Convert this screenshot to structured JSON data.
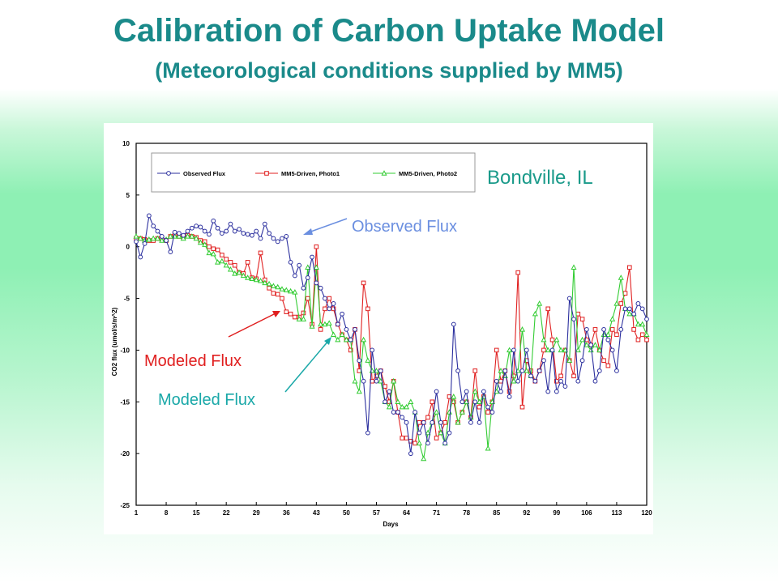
{
  "slide": {
    "title": "Calibration of Carbon Uptake Model",
    "subtitle": "(Meteorological conditions supplied by MM5)"
  },
  "colors": {
    "observed": "#2b2f9e",
    "photo1": "#e02020",
    "photo2": "#33cc33",
    "title": "#1a8a8a",
    "annot_observed": "#6b8fe0",
    "annot_modeled_red": "#e02020",
    "annot_modeled_teal": "#1aa8a8"
  },
  "annotations": {
    "site": "Bondville,  IL",
    "observed": "Observed Flux",
    "modeled_red": "Modeled Flux",
    "modeled_teal": "Modeled Flux"
  },
  "chart_data": {
    "type": "line",
    "xlabel": "Days",
    "ylabel": "CO2 flux (umol/s/m^2)",
    "xlim": [
      1,
      120
    ],
    "ylim": [
      -25,
      10
    ],
    "xticks": [
      1,
      8,
      15,
      22,
      29,
      36,
      43,
      50,
      57,
      64,
      71,
      78,
      85,
      92,
      99,
      106,
      113,
      120
    ],
    "yticks": [
      10,
      5,
      0,
      -5,
      -10,
      -15,
      -20,
      -25
    ],
    "grid": false,
    "legend": "top-left",
    "series": [
      {
        "name": "Observed Flux",
        "x": [
          1,
          2,
          3,
          4,
          5,
          6,
          7,
          8,
          9,
          10,
          11,
          12,
          13,
          14,
          15,
          16,
          17,
          18,
          19,
          20,
          21,
          22,
          23,
          24,
          25,
          26,
          27,
          28,
          29,
          30,
          31,
          32,
          33,
          34,
          35,
          36,
          37,
          38,
          39,
          40,
          41,
          42,
          43,
          44,
          45,
          46,
          47,
          48,
          49,
          50,
          51,
          52,
          53,
          54,
          55,
          56,
          57,
          58,
          59,
          60,
          61,
          62,
          63,
          64,
          65,
          66,
          67,
          68,
          69,
          70,
          71,
          72,
          73,
          74,
          75,
          76,
          77,
          78,
          79,
          80,
          81,
          82,
          83,
          84,
          85,
          86,
          87,
          88,
          89,
          90,
          91,
          92,
          93,
          94,
          95,
          96,
          97,
          98,
          99,
          100,
          101,
          102,
          103,
          104,
          105,
          106,
          107,
          108,
          109,
          110,
          111,
          112,
          113,
          114,
          115,
          116,
          117,
          118,
          119,
          120
        ],
        "y": [
          0.5,
          -1,
          0.3,
          3,
          2,
          1.5,
          1,
          0.6,
          -0.5,
          1.4,
          1.3,
          1.1,
          1.5,
          1.8,
          2,
          1.9,
          1.5,
          1.2,
          2.5,
          1.8,
          1.3,
          1.5,
          2.2,
          1.5,
          1.7,
          1.3,
          1.2,
          1.1,
          1.5,
          0.8,
          2.2,
          1.3,
          0.8,
          0.5,
          0.8,
          1,
          -1.5,
          -2.8,
          -1.8,
          -4,
          -3,
          -1,
          -3.5,
          -4,
          -5,
          -6,
          -5.5,
          -7.5,
          -6.5,
          -8,
          -9,
          -8,
          -11,
          -13,
          -18,
          -10,
          -13,
          -12,
          -15,
          -14,
          -16,
          -16,
          -16.5,
          -17,
          -20,
          -16,
          -18,
          -17,
          -19,
          -17,
          -14,
          -17,
          -19,
          -18,
          -7.5,
          -12,
          -15,
          -14,
          -17,
          -15,
          -17,
          -14,
          -15.5,
          -16,
          -13,
          -14,
          -12,
          -14.5,
          -10,
          -13,
          -12,
          -10,
          -12.5,
          -13,
          -12,
          -11,
          -14,
          -10,
          -14,
          -13,
          -13.5,
          -5,
          -7,
          -13,
          -11,
          -8,
          -9.5,
          -13,
          -12,
          -8,
          -9,
          -10,
          -12,
          -8,
          -6,
          -6,
          -6.5,
          -5.5,
          -6,
          -7
        ]
      },
      {
        "name": "MM5-Driven, Photo1",
        "x": [
          1,
          2,
          3,
          4,
          5,
          6,
          7,
          8,
          9,
          10,
          11,
          12,
          13,
          14,
          15,
          16,
          17,
          18,
          19,
          20,
          21,
          22,
          23,
          24,
          25,
          26,
          27,
          28,
          29,
          30,
          31,
          32,
          33,
          34,
          35,
          36,
          37,
          38,
          39,
          40,
          41,
          42,
          43,
          44,
          45,
          46,
          47,
          48,
          49,
          50,
          51,
          52,
          53,
          54,
          55,
          56,
          57,
          58,
          59,
          60,
          61,
          62,
          63,
          64,
          65,
          66,
          67,
          68,
          69,
          70,
          71,
          72,
          73,
          74,
          75,
          76,
          77,
          78,
          79,
          80,
          81,
          82,
          83,
          84,
          85,
          86,
          87,
          88,
          89,
          90,
          91,
          92,
          93,
          94,
          95,
          96,
          97,
          98,
          99,
          100,
          101,
          102,
          103,
          104,
          105,
          106,
          107,
          108,
          109,
          110,
          111,
          112,
          113,
          114,
          115,
          116,
          117,
          118,
          119,
          120
        ],
        "y": [
          0.8,
          0.8,
          0.7,
          0.6,
          0.6,
          0.8,
          0.7,
          0.6,
          1,
          1.2,
          1,
          0.9,
          1.1,
          1,
          0.9,
          0.6,
          0.5,
          0,
          -0.2,
          -0.3,
          -0.8,
          -1.2,
          -1.5,
          -1.8,
          -2.5,
          -2.6,
          -1.5,
          -3,
          -3.1,
          -0.6,
          -3.2,
          -4,
          -4.5,
          -4.6,
          -5,
          -6.3,
          -6.5,
          -6.8,
          -6.8,
          -6.4,
          -5,
          -7.5,
          0,
          -8,
          -6,
          -5,
          -6,
          -7.5,
          -8.5,
          -9,
          -10,
          -8,
          -12,
          -3.5,
          -6,
          -13,
          -12.5,
          -12,
          -13.5,
          -15,
          -13,
          -16,
          -18.5,
          -18.5,
          -18.8,
          -19,
          -17,
          -17,
          -16.5,
          -15,
          -18.5,
          -18,
          -17,
          -14.5,
          -15,
          -17,
          -16,
          -15,
          -16.5,
          -12,
          -15.5,
          -14.5,
          -16,
          -15,
          -10,
          -13,
          -12,
          -14,
          -12.5,
          -2.5,
          -15.5,
          -11,
          -12,
          -13,
          -12,
          -10,
          -6,
          -9,
          -13,
          -12.5,
          -10,
          -11,
          -12.5,
          -6.5,
          -7,
          -9,
          -9.5,
          -8,
          -10,
          -11,
          -11.5,
          -8,
          -8.5,
          -5.5,
          -4.5,
          -2,
          -8,
          -9,
          -8.5,
          -9
        ]
      },
      {
        "name": "MM5-Driven, Photo2",
        "x": [
          1,
          2,
          3,
          4,
          5,
          6,
          7,
          8,
          9,
          10,
          11,
          12,
          13,
          14,
          15,
          16,
          17,
          18,
          19,
          20,
          21,
          22,
          23,
          24,
          25,
          26,
          27,
          28,
          29,
          30,
          31,
          32,
          33,
          34,
          35,
          36,
          37,
          38,
          39,
          40,
          41,
          42,
          43,
          44,
          45,
          46,
          47,
          48,
          49,
          50,
          51,
          52,
          53,
          54,
          55,
          56,
          57,
          58,
          59,
          60,
          61,
          62,
          63,
          64,
          65,
          66,
          67,
          68,
          69,
          70,
          71,
          72,
          73,
          74,
          75,
          76,
          77,
          78,
          79,
          80,
          81,
          82,
          83,
          84,
          85,
          86,
          87,
          88,
          89,
          90,
          91,
          92,
          93,
          94,
          95,
          96,
          97,
          98,
          99,
          100,
          101,
          102,
          103,
          104,
          105,
          106,
          107,
          108,
          109,
          110,
          111,
          112,
          113,
          114,
          115,
          116,
          117,
          118,
          119,
          120
        ],
        "y": [
          1,
          0.8,
          0.6,
          0.7,
          0.8,
          0.8,
          0.6,
          0.7,
          1,
          1,
          1,
          0.8,
          1,
          1,
          0.8,
          0.4,
          0.2,
          -0.6,
          -0.7,
          -1.5,
          -1.4,
          -1.8,
          -2.2,
          -2.6,
          -2.5,
          -2.8,
          -3,
          -3.1,
          -3.2,
          -3.3,
          -3.5,
          -3.6,
          -3.8,
          -3.9,
          -4.1,
          -4.2,
          -4.3,
          -4.4,
          -7,
          -7,
          -2,
          -7.7,
          -2,
          -7.5,
          -7.5,
          -7.4,
          -8.5,
          -9,
          -8.5,
          -9,
          -9,
          -13,
          -14,
          -9,
          -11,
          -12,
          -12,
          -13,
          -15,
          -15.5,
          -13,
          -15,
          -15.5,
          -15.5,
          -15,
          -16,
          -19,
          -20.5,
          -18,
          -17,
          -16,
          -18,
          -19,
          -16,
          -14.5,
          -17,
          -16,
          -15,
          -16.5,
          -14,
          -15,
          -14.5,
          -19.5,
          -15,
          -14,
          -12,
          -12.5,
          -10,
          -13,
          -12,
          -8,
          -12,
          -12.5,
          -6.5,
          -5.5,
          -9,
          -10,
          -10,
          -9,
          -10,
          -10,
          -11,
          -2,
          -10,
          -9,
          -9.5,
          -10,
          -9.5,
          -10,
          -8.5,
          -8.5,
          -7,
          -5.5,
          -3,
          -6,
          -6.5,
          -6.5,
          -7.5,
          -7.5,
          -8.5
        ]
      }
    ]
  }
}
